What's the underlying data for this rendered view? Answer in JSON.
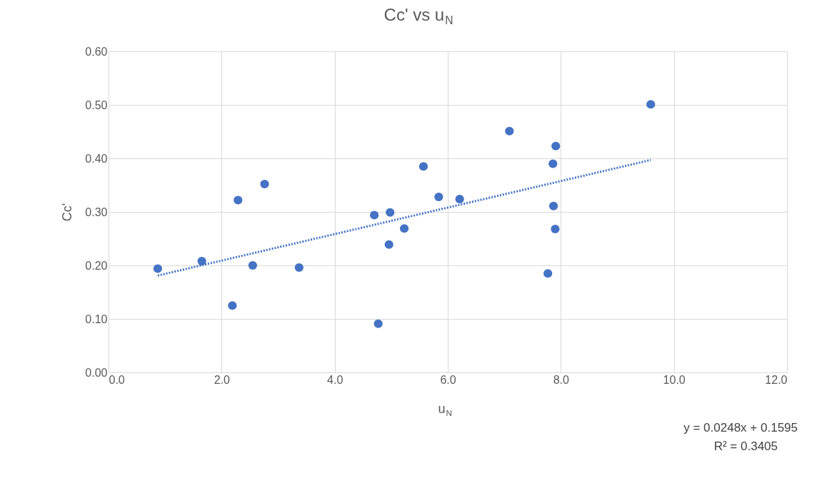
{
  "chart_data": {
    "type": "scatter",
    "title": "Cc' vs u$_{N}$",
    "xlabel": "u$_{N}$",
    "ylabel": "Cc'",
    "series": [
      {
        "color": "#4472c4",
        "marker": "circle",
        "x": [
          0.87,
          1.65,
          2.29,
          2.19,
          2.55,
          2.76,
          3.37,
          4.7,
          4.77,
          4.96,
          4.98,
          5.23,
          5.57,
          5.84,
          6.21,
          7.09,
          7.77,
          7.86,
          7.87,
          7.9,
          7.91,
          9.59
        ],
        "values": [
          0.194,
          0.208,
          0.322,
          0.125,
          0.2,
          0.352,
          0.196,
          0.294,
          0.091,
          0.239,
          0.299,
          0.269,
          0.385,
          0.328,
          0.324,
          0.451,
          0.185,
          0.39,
          0.311,
          0.268,
          0.423,
          0.501
        ]
      },
      {
        "type": "line",
        "color": "#4472c4",
        "line_style": "dotted",
        "x": [
          0.87,
          9.59
        ],
        "values": [
          0.181,
          0.397
        ]
      }
    ],
    "xlim": [
      0,
      12
    ],
    "ylim": [
      0,
      0.6
    ],
    "xticks": [
      {
        "value": 0,
        "label": "0.0"
      },
      {
        "value": 2,
        "label": "2.0"
      },
      {
        "value": 4,
        "label": "4.0"
      },
      {
        "value": 6,
        "label": "6.0"
      },
      {
        "value": 8,
        "label": "8.0"
      },
      {
        "value": 10,
        "label": "10.0"
      },
      {
        "value": 12,
        "label": "12.0"
      }
    ],
    "yticks": [
      {
        "value": 0,
        "label": "0.00"
      },
      {
        "value": 0.1,
        "label": "0.10"
      },
      {
        "value": 0.2,
        "label": "0.20"
      },
      {
        "value": 0.3,
        "label": "0.30"
      },
      {
        "value": 0.4,
        "label": "0.40"
      },
      {
        "value": 0.5,
        "label": "0.50"
      },
      {
        "value": 0.6,
        "label": "0.60"
      }
    ],
    "annotations": [
      "y = 0.0248x + 0.1595",
      "R² = 0.3405"
    ],
    "grid": true,
    "legend": false
  }
}
